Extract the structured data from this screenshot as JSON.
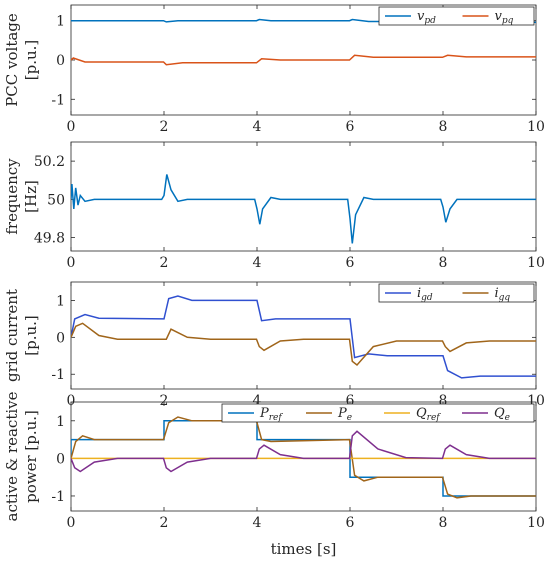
{
  "chart_data": [
    {
      "type": "line",
      "ylabel_lines": [
        "PCC voltage",
        "[p.u.]"
      ],
      "xlim": [
        0,
        10
      ],
      "ylim": [
        -1.4,
        1.4
      ],
      "xticks": [
        0,
        2,
        4,
        6,
        8,
        10
      ],
      "yticks": [
        -1,
        0,
        1
      ],
      "xtick_labels": [
        "0",
        "2",
        "4",
        "6",
        "8",
        "10"
      ],
      "ytick_labels": [
        "-1",
        "0",
        "1"
      ],
      "legend": "top-right",
      "series": [
        {
          "name": "v",
          "sub": "pd",
          "color": "#0072BD",
          "x": [
            0,
            1.99,
            2.05,
            2.3,
            3.99,
            4.05,
            4.3,
            5.99,
            6.05,
            6.4,
            7.99,
            8.05,
            8.4,
            10
          ],
          "y": [
            1.0,
            1.0,
            0.97,
            1.0,
            1.0,
            1.03,
            1.0,
            1.0,
            1.03,
            0.98,
            0.98,
            0.96,
            0.96,
            0.96
          ]
        },
        {
          "name": "v",
          "sub": "pq",
          "color": "#D95319",
          "x": [
            0,
            0.05,
            0.3,
            1.99,
            2.05,
            2.4,
            3.99,
            4.1,
            4.5,
            5.99,
            6.1,
            6.5,
            7.99,
            8.1,
            8.5,
            10
          ],
          "y": [
            0.0,
            0.05,
            -0.05,
            -0.05,
            -0.12,
            -0.07,
            -0.07,
            0.03,
            0.0,
            0.0,
            0.12,
            0.07,
            0.07,
            0.12,
            0.08,
            0.08
          ]
        }
      ]
    },
    {
      "type": "line",
      "ylabel_lines": [
        "frequency",
        "[Hz]"
      ],
      "xlim": [
        0,
        10
      ],
      "ylim": [
        49.73,
        50.3
      ],
      "xticks": [
        0,
        2,
        4,
        6,
        8,
        10
      ],
      "yticks": [
        49.8,
        50,
        50.2
      ],
      "xtick_labels": [
        "0",
        "2",
        "4",
        "6",
        "8",
        "10"
      ],
      "ytick_labels": [
        "49.8",
        "50",
        "50.2"
      ],
      "series": [
        {
          "name": "frequency",
          "color": "#0072BD",
          "x": [
            0,
            0.02,
            0.06,
            0.1,
            0.15,
            0.2,
            0.3,
            0.5,
            1.95,
            2.0,
            2.06,
            2.15,
            2.3,
            2.5,
            3.95,
            4.0,
            4.06,
            4.12,
            4.3,
            4.5,
            5.95,
            6.0,
            6.05,
            6.12,
            6.3,
            6.5,
            7.95,
            8.0,
            8.06,
            8.15,
            8.3,
            8.5,
            10
          ],
          "y": [
            50.0,
            50.08,
            49.95,
            50.06,
            49.97,
            50.02,
            49.99,
            50.0,
            50.0,
            50.02,
            50.13,
            50.05,
            49.99,
            50.0,
            50.0,
            49.95,
            49.87,
            49.95,
            50.01,
            50.0,
            50.0,
            49.9,
            49.77,
            49.92,
            50.01,
            50.0,
            50.0,
            49.96,
            49.88,
            49.95,
            50.0,
            50.0,
            50.0
          ]
        }
      ]
    },
    {
      "type": "line",
      "ylabel_lines": [
        "grid current",
        "[p.u.]"
      ],
      "xlim": [
        0,
        10
      ],
      "ylim": [
        -1.4,
        1.5
      ],
      "xticks": [
        0,
        2,
        4,
        6,
        8,
        10
      ],
      "yticks": [
        -1,
        0,
        1
      ],
      "xtick_labels": [
        "0",
        "2",
        "4",
        "6",
        "8",
        "10"
      ],
      "ytick_labels": [
        "-1",
        "0",
        "1"
      ],
      "legend": "top-right",
      "series": [
        {
          "name": "i",
          "sub": "gd",
          "color": "#3050D0",
          "x": [
            0,
            0.08,
            0.3,
            0.6,
            1.99,
            2.0,
            2.1,
            2.3,
            2.6,
            3.99,
            4.0,
            4.1,
            4.4,
            5.99,
            6.0,
            6.1,
            6.4,
            6.8,
            7.99,
            8.0,
            8.1,
            8.4,
            8.8,
            10
          ],
          "y": [
            0,
            0.5,
            0.62,
            0.52,
            0.5,
            0.5,
            1.05,
            1.12,
            1.0,
            1.0,
            1.0,
            0.45,
            0.5,
            0.5,
            0.5,
            -0.55,
            -0.45,
            -0.5,
            -0.5,
            -0.5,
            -0.9,
            -1.1,
            -1.05,
            -1.05
          ]
        },
        {
          "name": "i",
          "sub": "gq",
          "color": "#A0651A",
          "x": [
            0,
            0.1,
            0.25,
            0.6,
            1.0,
            1.99,
            2.05,
            2.15,
            2.5,
            3.0,
            3.99,
            4.05,
            4.15,
            4.5,
            5.0,
            5.99,
            6.05,
            6.15,
            6.5,
            7.0,
            7.99,
            8.05,
            8.15,
            8.5,
            9.0,
            10
          ],
          "y": [
            0,
            0.3,
            0.38,
            0.05,
            -0.05,
            -0.05,
            -0.05,
            0.22,
            0.0,
            -0.05,
            -0.05,
            -0.25,
            -0.35,
            -0.1,
            -0.05,
            -0.05,
            -0.65,
            -0.75,
            -0.25,
            -0.1,
            -0.1,
            -0.25,
            -0.38,
            -0.15,
            -0.1,
            -0.1
          ]
        }
      ]
    },
    {
      "type": "line",
      "ylabel_lines": [
        "active & reactive",
        "power [p.u.]"
      ],
      "xlabel": "times [s]",
      "xlim": [
        0,
        10
      ],
      "ylim": [
        -1.4,
        1.5
      ],
      "xticks": [
        0,
        2,
        4,
        6,
        8,
        10
      ],
      "yticks": [
        -1,
        0,
        1
      ],
      "xtick_labels": [
        "0",
        "2",
        "4",
        "6",
        "8",
        "10"
      ],
      "ytick_labels": [
        "-1",
        "0",
        "1"
      ],
      "legend": "top-right",
      "series": [
        {
          "name": "P",
          "sub": "ref",
          "color": "#0072BD",
          "x": [
            0,
            0,
            2,
            2,
            4,
            4,
            6,
            6,
            8,
            8,
            10
          ],
          "y": [
            0,
            0.5,
            0.5,
            1.0,
            1.0,
            0.5,
            0.5,
            -0.5,
            -0.5,
            -1.0,
            -1.0
          ]
        },
        {
          "name": "P",
          "sub": "e",
          "color": "#A0651A",
          "x": [
            0,
            0.1,
            0.25,
            0.5,
            1.99,
            2.1,
            2.3,
            2.6,
            3.99,
            4.1,
            4.3,
            5.99,
            6.1,
            6.3,
            6.6,
            7.99,
            8.1,
            8.3,
            8.6,
            10
          ],
          "y": [
            0,
            0.45,
            0.6,
            0.5,
            0.5,
            0.95,
            1.1,
            1.0,
            1.0,
            0.5,
            0.45,
            0.5,
            -0.45,
            -0.6,
            -0.5,
            -0.5,
            -0.95,
            -1.05,
            -1.0,
            -1.0
          ]
        },
        {
          "name": "Q",
          "sub": "ref",
          "color": "#EDB120",
          "x": [
            0,
            10
          ],
          "y": [
            0,
            0
          ]
        },
        {
          "name": "Q",
          "sub": "e",
          "color": "#7E2F8E",
          "x": [
            0,
            0.08,
            0.2,
            0.5,
            1.0,
            1.99,
            2.05,
            2.15,
            2.5,
            3.0,
            3.99,
            4.05,
            4.15,
            4.5,
            5.0,
            5.99,
            6.05,
            6.15,
            6.6,
            7.2,
            7.99,
            8.05,
            8.15,
            8.5,
            9.0,
            10
          ],
          "y": [
            0,
            -0.25,
            -0.35,
            -0.1,
            0,
            0,
            -0.25,
            -0.35,
            -0.1,
            0,
            0,
            0.25,
            0.35,
            0.1,
            0,
            0,
            0.6,
            0.72,
            0.25,
            0.02,
            0,
            0.25,
            0.35,
            0.1,
            0,
            0
          ]
        }
      ]
    }
  ]
}
